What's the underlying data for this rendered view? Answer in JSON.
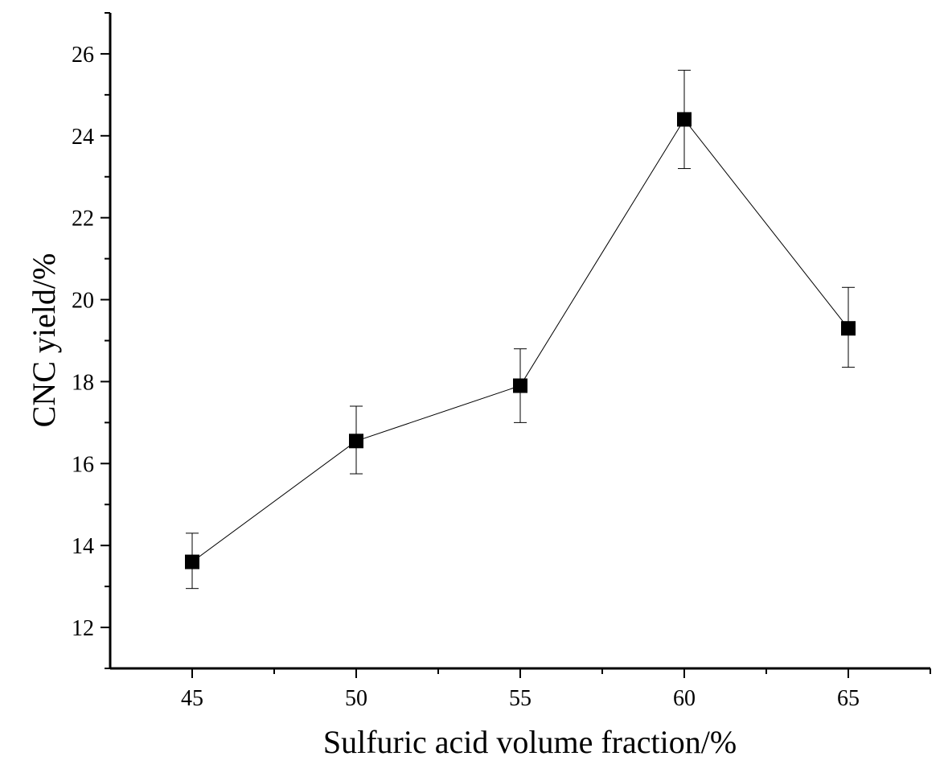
{
  "chart_data": {
    "type": "line",
    "title": "",
    "xlabel": "Sulfuric acid volume fraction/%",
    "ylabel": "CNC yield/%",
    "xlim": [
      42.5,
      67.5
    ],
    "ylim": [
      11,
      27
    ],
    "x_ticks": [
      45,
      50,
      55,
      60,
      65
    ],
    "y_ticks": [
      12,
      14,
      16,
      18,
      20,
      22,
      24,
      26
    ],
    "grid": false,
    "legend": "none",
    "series": [
      {
        "marker": "square",
        "color": "#000000",
        "points": [
          {
            "x": 45,
            "y": 13.6,
            "err_low": 12.95,
            "err_high": 14.3
          },
          {
            "x": 50,
            "y": 16.55,
            "err_low": 15.75,
            "err_high": 17.4
          },
          {
            "x": 55,
            "y": 17.9,
            "err_low": 17.0,
            "err_high": 18.8
          },
          {
            "x": 60,
            "y": 24.4,
            "err_low": 23.2,
            "err_high": 25.6
          },
          {
            "x": 65,
            "y": 19.3,
            "err_low": 18.35,
            "err_high": 20.3
          }
        ]
      }
    ]
  }
}
